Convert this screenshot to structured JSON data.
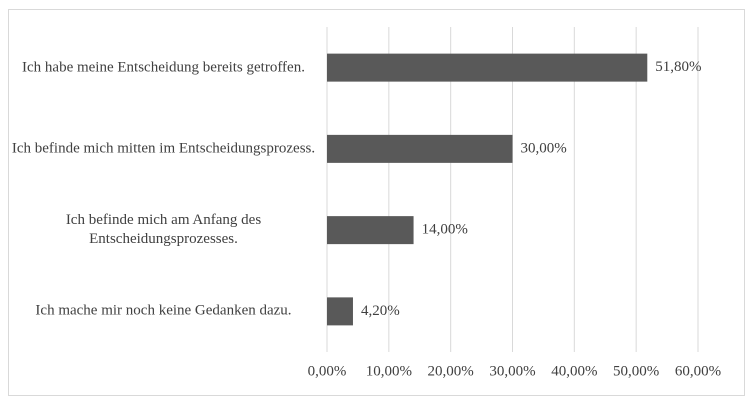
{
  "chart_data": {
    "type": "bar",
    "orientation": "horizontal",
    "categories": [
      "Ich habe meine Entscheidung bereits getroffen.",
      "Ich befinde mich mitten im Entscheidungsprozess.",
      "Ich befinde mich am Anfang des Entscheidungsprozesses.",
      "Ich mache mir noch keine Gedanken dazu."
    ],
    "values": [
      51.8,
      30,
      14,
      4.2
    ],
    "value_labels": [
      "51,80%",
      "30,00%",
      "14,00%",
      "4,20%"
    ],
    "color": "#595959",
    "xlim": [
      0,
      60
    ],
    "xticks": [
      {
        "value": 0,
        "label": "0,00%"
      },
      {
        "value": 10,
        "label": "10,00%"
      },
      {
        "value": 20,
        "label": "20,00%"
      },
      {
        "value": 30,
        "label": "30,00%"
      },
      {
        "value": 40,
        "label": "40,00%"
      },
      {
        "value": 50,
        "label": "50,00%"
      },
      {
        "value": 60,
        "label": "60,00%"
      }
    ],
    "grid": true
  }
}
